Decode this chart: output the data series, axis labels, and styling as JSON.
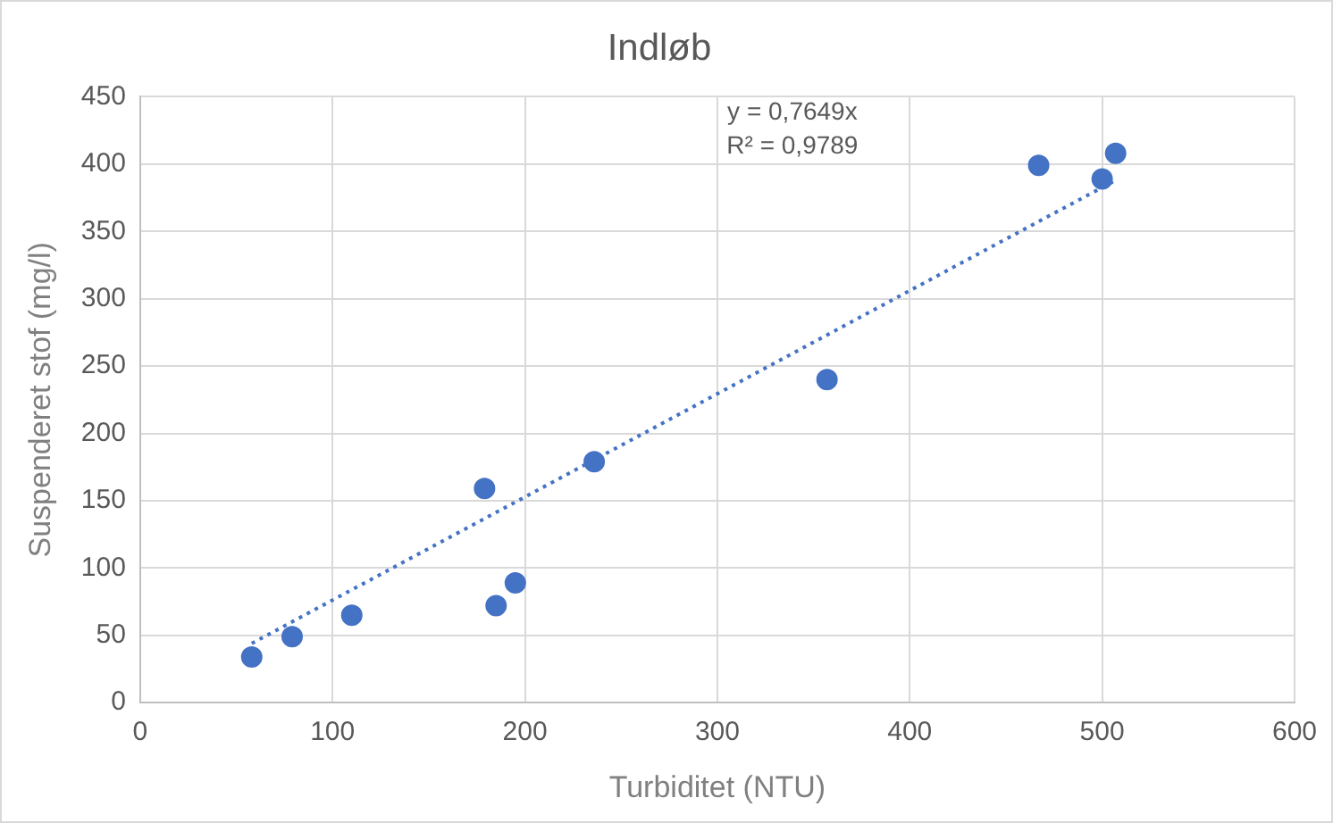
{
  "chart_data": {
    "type": "scatter",
    "title": "Indløb",
    "xlabel": "Turbiditet (NTU)",
    "ylabel": "Suspenderet stof (mg/l)",
    "x": [
      58,
      79,
      110,
      179,
      185,
      195,
      236,
      357,
      467,
      500,
      507
    ],
    "series": [
      {
        "color": "#4472c4",
        "marker": "circle",
        "values": [
          34,
          49,
          65,
          159,
          72,
          89,
          179,
          240,
          399,
          389,
          408
        ]
      },
      {
        "type": "line",
        "color": "#4472c4",
        "line_style": "dotted",
        "marker": "none",
        "x": [
          58,
          507
        ],
        "values": [
          44,
          388
        ]
      }
    ],
    "xlim": [
      0,
      600
    ],
    "xticks": [
      0,
      100,
      200,
      300,
      400,
      500,
      600
    ],
    "ylim": [
      0,
      450
    ],
    "yticks": [
      0,
      50,
      100,
      150,
      200,
      250,
      300,
      350,
      400,
      450
    ],
    "grid": true,
    "legend": false,
    "annotations": [
      "y = 0,7649x",
      "R² = 0,9789"
    ]
  }
}
